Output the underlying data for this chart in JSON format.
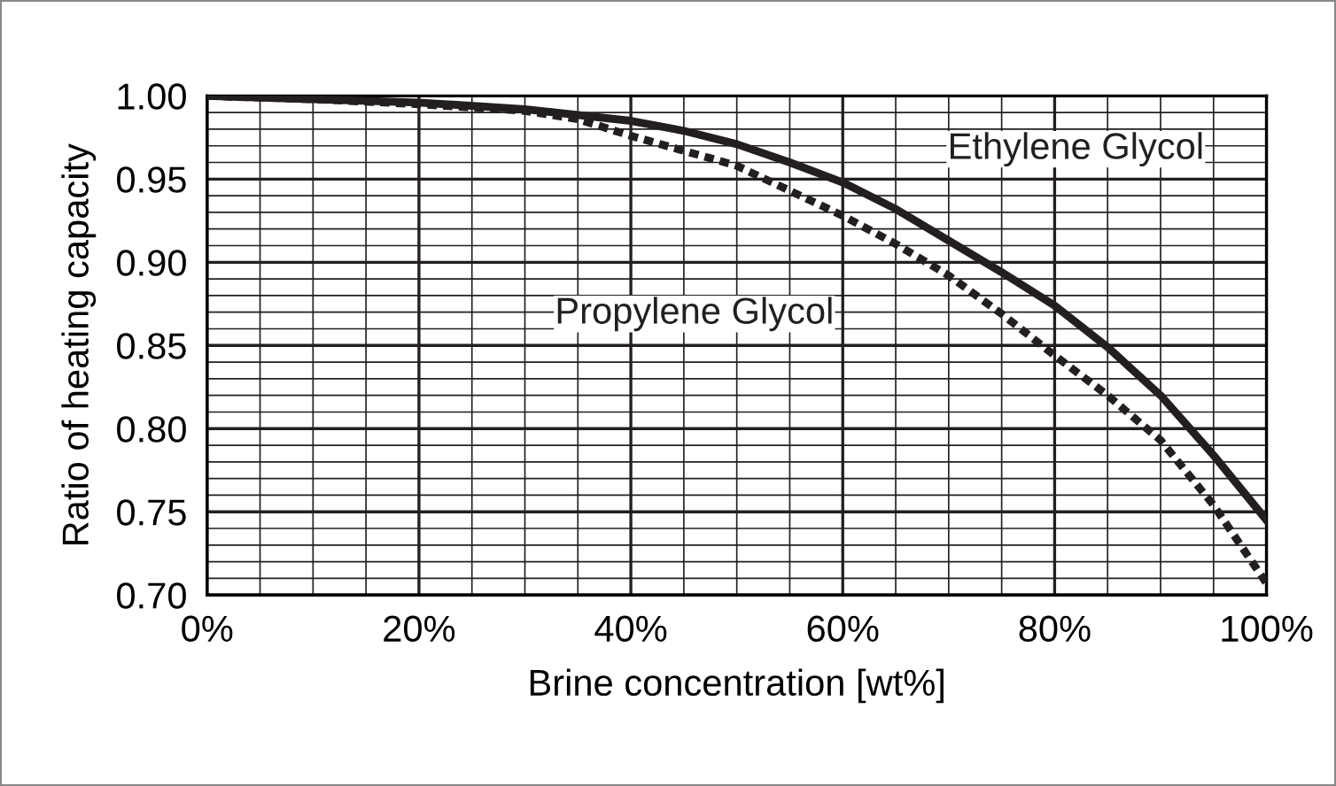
{
  "chart_data": {
    "type": "line",
    "xlabel": "Brine concentration [wt%]",
    "ylabel": "Ratio of heating capacity",
    "series": [
      {
        "name": "Ethylene Glycol",
        "color": "#231f20",
        "line_style": "solid",
        "x": [
          0,
          10,
          20,
          30,
          40,
          45,
          50,
          55,
          60,
          65,
          70,
          75,
          80,
          85,
          90,
          95,
          100
        ],
        "values": [
          1.0,
          0.998,
          0.996,
          0.992,
          0.985,
          0.979,
          0.971,
          0.96,
          0.948,
          0.932,
          0.913,
          0.894,
          0.874,
          0.849,
          0.82,
          0.784,
          0.745
        ]
      },
      {
        "name": "Propylene Glycol",
        "color": "#231f20",
        "line_style": "dashed",
        "x": [
          0,
          10,
          20,
          30,
          35,
          40,
          45,
          50,
          55,
          60,
          65,
          70,
          75,
          80,
          85,
          90,
          95,
          100
        ],
        "values": [
          1.0,
          0.998,
          0.995,
          0.991,
          0.986,
          0.976,
          0.967,
          0.958,
          0.943,
          0.928,
          0.911,
          0.892,
          0.869,
          0.844,
          0.82,
          0.793,
          0.754,
          0.707
        ]
      }
    ],
    "xlim": [
      0,
      100
    ],
    "xticks": [
      {
        "value": 0,
        "label": "0%"
      },
      {
        "value": 20,
        "label": "20%"
      },
      {
        "value": 40,
        "label": "40%"
      },
      {
        "value": 60,
        "label": "60%"
      },
      {
        "value": 80,
        "label": "80%"
      },
      {
        "value": 100,
        "label": "100%"
      }
    ],
    "ylim": [
      0.7,
      1.0
    ],
    "yticks": [
      {
        "value": 0.7,
        "label": "0.70"
      },
      {
        "value": 0.75,
        "label": "0.75"
      },
      {
        "value": 0.8,
        "label": "0.80"
      },
      {
        "value": 0.85,
        "label": "0.85"
      },
      {
        "value": 0.9,
        "label": "0.90"
      },
      {
        "value": 0.95,
        "label": "0.95"
      },
      {
        "value": 1.0,
        "label": "1.00"
      }
    ],
    "grid": true
  }
}
